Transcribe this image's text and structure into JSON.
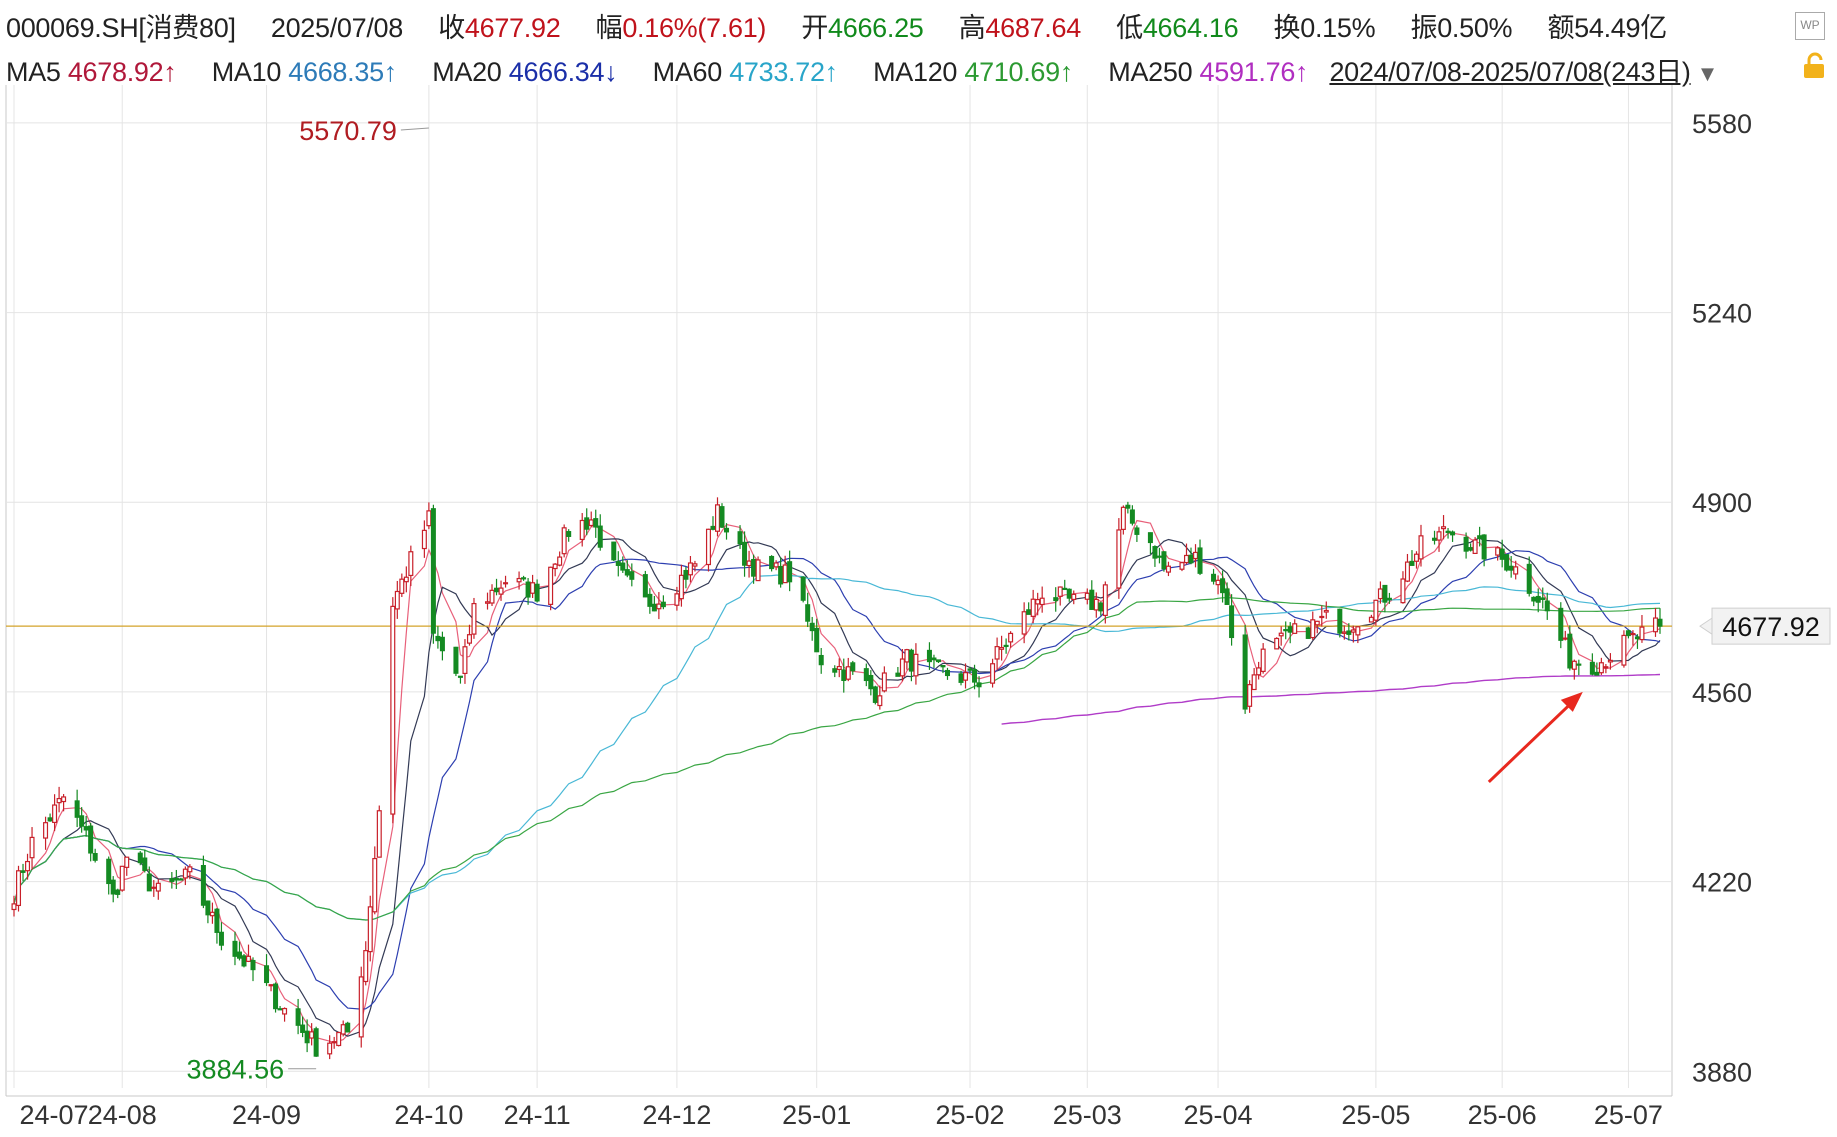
{
  "header": {
    "code": "000069.SH[消费80]",
    "date": "2025/07/08",
    "close_label": "收",
    "close_value": "4677.92",
    "change_label": "幅",
    "change_value": "0.16%(7.61)",
    "open_label": "开",
    "open_value": "4666.25",
    "high_label": "高",
    "high_value": "4687.64",
    "low_label": "低",
    "low_value": "4664.16",
    "turnover_label": "换",
    "turnover_value": "0.15%",
    "amplitude_label": "振",
    "amplitude_value": "0.50%",
    "amount_label": "额",
    "amount_value": "54.49亿"
  },
  "ma_bar": {
    "ma5_label": "MA5",
    "ma5_value": "4678.92↑",
    "ma10_label": "MA10",
    "ma10_value": "4668.35↑",
    "ma20_label": "MA20",
    "ma20_value": "4666.34↓",
    "ma60_label": "MA60",
    "ma60_value": "4733.72↑",
    "ma120_label": "MA120",
    "ma120_value": "4710.69↑",
    "ma250_label": "MA250",
    "ma250_value": "4591.76↑",
    "range": "2024/07/08-2025/07/08(243日)"
  },
  "icons": {
    "dropdown": "triangle-down-icon",
    "lock": "lock-icon",
    "wp": "WP"
  },
  "colors": {
    "up": "#c8202a",
    "down": "#148a22",
    "grid": "#e4e4e4",
    "ma5": "#e8607a",
    "ma10": "#333a55",
    "ma20": "#2d3fb0",
    "ma60": "#49b8d6",
    "ma120": "#3aa644",
    "ma250": "#b03cc8",
    "last_line": "#d4a32a",
    "arrow": "#e8281e"
  },
  "chart_data": {
    "type": "candlestick",
    "y_ticks": [
      5580,
      5240,
      4900,
      4560,
      4220,
      3880
    ],
    "ylim": [
      3850,
      5630
    ],
    "x_tick_labels": [
      "24-07",
      "24-08",
      "24-09",
      "24-10",
      "24-11",
      "24-12",
      "25-01",
      "25-02",
      "25-03",
      "25-04",
      "25-05",
      "25-06",
      "25-07"
    ],
    "x_tick_dates": [
      "2024-07-08",
      "2024-08-01",
      "2024-09-02",
      "2024-10-08",
      "2024-11-01",
      "2024-12-02",
      "2025-01-02",
      "2025-02-05",
      "2025-03-03",
      "2025-04-01",
      "2025-05-06",
      "2025-06-03",
      "2025-07-01"
    ],
    "start_date": "2024-07-08",
    "end_date": "2025-07-08",
    "trading_days": 243,
    "last_price": 4677.92,
    "last_price_label": "4677.92",
    "max_annotation": {
      "date": "2024-10-08",
      "value": 5570.79,
      "label": "5570.79"
    },
    "min_annotation": {
      "date": "2024-09-13",
      "value": 3884.56,
      "label": "3884.56"
    },
    "anchors": [
      [
        "2024-07-08",
        4200
      ],
      [
        "2024-07-12",
        4290
      ],
      [
        "2024-07-19",
        4370
      ],
      [
        "2024-07-24",
        4300
      ],
      [
        "2024-07-30",
        4190
      ],
      [
        "2024-08-02",
        4265
      ],
      [
        "2024-08-09",
        4200
      ],
      [
        "2024-08-16",
        4230
      ],
      [
        "2024-08-23",
        4120
      ],
      [
        "2024-08-30",
        4060
      ],
      [
        "2024-09-06",
        3990
      ],
      [
        "2024-09-13",
        3925
      ],
      [
        "2024-09-20",
        3950
      ],
      [
        "2024-09-24",
        4100
      ],
      [
        "2024-09-27",
        4350
      ],
      [
        "2024-09-30",
        4720
      ],
      [
        "2024-10-08",
        4870
      ],
      [
        "2024-10-09",
        4660
      ],
      [
        "2024-10-15",
        4580
      ],
      [
        "2024-10-18",
        4710
      ],
      [
        "2024-10-25",
        4760
      ],
      [
        "2024-11-01",
        4740
      ],
      [
        "2024-11-08",
        4850
      ],
      [
        "2024-11-13",
        4870
      ],
      [
        "2024-11-18",
        4780
      ],
      [
        "2024-11-25",
        4720
      ],
      [
        "2024-11-29",
        4730
      ],
      [
        "2024-12-06",
        4790
      ],
      [
        "2024-12-11",
        4880
      ],
      [
        "2024-12-16",
        4810
      ],
      [
        "2024-12-20",
        4780
      ],
      [
        "2024-12-27",
        4770
      ],
      [
        "2025-01-03",
        4620
      ],
      [
        "2025-01-10",
        4590
      ],
      [
        "2025-01-15",
        4560
      ],
      [
        "2025-01-22",
        4620
      ],
      [
        "2025-01-27",
        4600
      ],
      [
        "2025-02-07",
        4580
      ],
      [
        "2025-02-14",
        4660
      ],
      [
        "2025-02-21",
        4740
      ],
      [
        "2025-02-28",
        4720
      ],
      [
        "2025-03-06",
        4720
      ],
      [
        "2025-03-11",
        4880
      ],
      [
        "2025-03-17",
        4830
      ],
      [
        "2025-03-20",
        4780
      ],
      [
        "2025-03-27",
        4800
      ],
      [
        "2025-04-02",
        4750
      ],
      [
        "2025-04-07",
        4540
      ],
      [
        "2025-04-10",
        4620
      ],
      [
        "2025-04-17",
        4660
      ],
      [
        "2025-04-25",
        4690
      ],
      [
        "2025-04-30",
        4680
      ],
      [
        "2025-05-09",
        4740
      ],
      [
        "2025-05-16",
        4820
      ],
      [
        "2025-05-22",
        4850
      ],
      [
        "2025-05-28",
        4820
      ],
      [
        "2025-06-05",
        4790
      ],
      [
        "2025-06-12",
        4720
      ],
      [
        "2025-06-18",
        4620
      ],
      [
        "2025-06-24",
        4610
      ],
      [
        "2025-07-01",
        4650
      ],
      [
        "2025-07-08",
        4677.92
      ]
    ]
  }
}
